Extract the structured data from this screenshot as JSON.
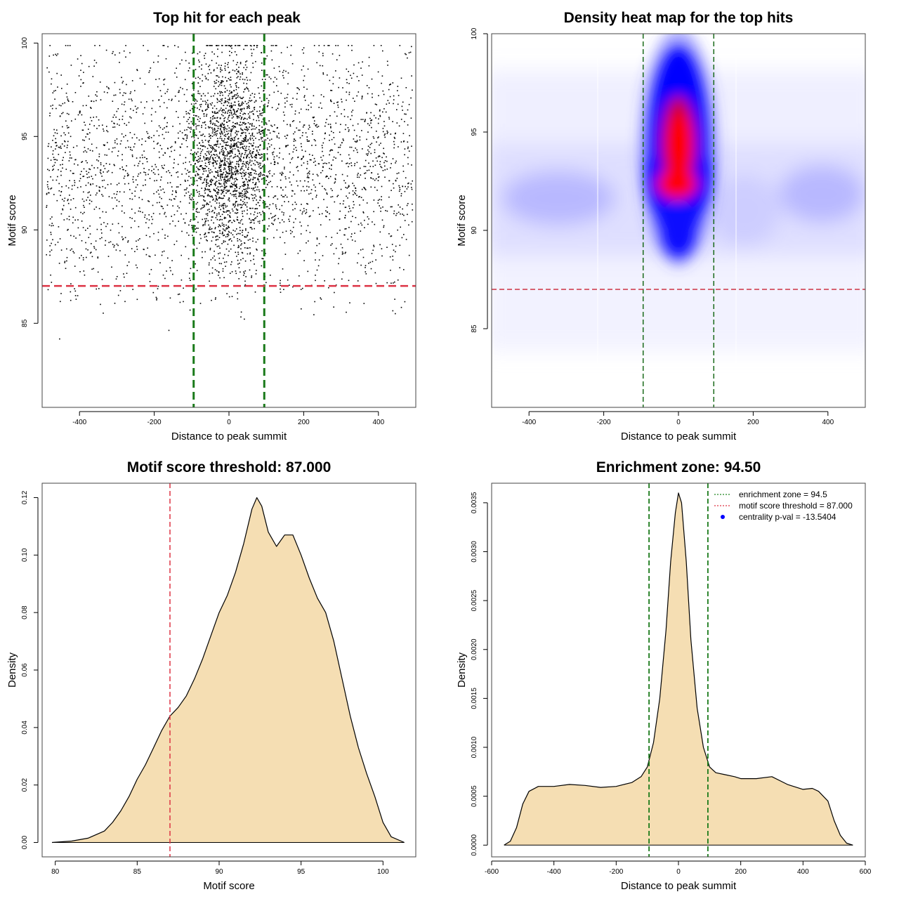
{
  "chart_data": [
    {
      "type": "scatter",
      "title": "Top hit for each peak",
      "xlabel": "Distance to peak summit",
      "ylabel": "Motif score",
      "xlim": [
        -500,
        500
      ],
      "ylim": [
        80.5,
        100.5
      ],
      "x_ticks": [
        -400,
        -200,
        0,
        200,
        400
      ],
      "y_ticks": [
        85,
        90,
        95,
        100
      ],
      "reference_lines": {
        "vertical": [
          -94.5,
          94.5
        ],
        "vertical_color": "#1a7a1a",
        "horizontal": 87.0,
        "horizontal_color": "#dd3344"
      },
      "point_color": "#000000",
      "grid": false,
      "note_points": "thousands of small points; dense central band between -100 and 100 with scores roughly 86-100, uniform background from -500 to 500 with scores roughly 81-100"
    },
    {
      "type": "heatmap",
      "title": "Density heat map for the top hits",
      "xlabel": "Distance to peak summit",
      "ylabel": "Motif score",
      "xlim": [
        -500,
        500
      ],
      "ylim": [
        81,
        100
      ],
      "x_ticks": [
        -400,
        -200,
        0,
        200,
        400
      ],
      "y_ticks": [
        85,
        90,
        95,
        100
      ],
      "colors": {
        "low": "#ffffff",
        "mid": "#0000ff",
        "high": "#ff0000"
      },
      "hotspot": {
        "x": 5,
        "y": 93.5
      },
      "reference_lines": {
        "vertical": [
          -94.5,
          94.5
        ],
        "vertical_color": "#1a6a1a",
        "horizontal": 87.0,
        "horizontal_color": "#cc3344"
      },
      "grid": false
    },
    {
      "type": "area",
      "title": "Motif score threshold: 87.000",
      "xlabel": "Motif score",
      "ylabel": "Density",
      "xlim": [
        79.2,
        102
      ],
      "ylim": [
        -0.005,
        0.125
      ],
      "x_ticks": [
        80,
        85,
        90,
        95,
        100
      ],
      "y_ticks": [
        "0.00",
        "0.02",
        "0.04",
        "0.06",
        "0.08",
        "0.10",
        "0.12"
      ],
      "x": [
        79.8,
        81,
        82,
        83,
        83.5,
        84,
        84.5,
        85,
        85.5,
        86,
        86.5,
        87,
        87.5,
        88,
        88.5,
        89,
        89.5,
        90,
        90.5,
        91,
        91.5,
        92,
        92.3,
        92.6,
        93,
        93.5,
        94,
        94.5,
        95,
        95.5,
        96,
        96.5,
        97,
        97.5,
        98,
        98.5,
        99,
        99.5,
        100,
        100.5,
        101.3
      ],
      "y": [
        0,
        0.0005,
        0.0015,
        0.004,
        0.007,
        0.011,
        0.016,
        0.022,
        0.027,
        0.033,
        0.039,
        0.044,
        0.047,
        0.051,
        0.057,
        0.064,
        0.072,
        0.08,
        0.086,
        0.094,
        0.104,
        0.116,
        0.12,
        0.117,
        0.108,
        0.103,
        0.107,
        0.107,
        0.1,
        0.092,
        0.085,
        0.08,
        0.07,
        0.057,
        0.044,
        0.033,
        0.024,
        0.016,
        0.007,
        0.002,
        0
      ],
      "fill": "#f5deb3",
      "line_color": "#000000",
      "threshold": 87.0,
      "threshold_color": "#dd3344",
      "grid": false
    },
    {
      "type": "area",
      "title": "Enrichment zone: 94.50",
      "xlabel": "Distance to peak summit",
      "ylabel": "Density",
      "xlim": [
        -600,
        600
      ],
      "ylim": [
        -0.00012,
        0.0037
      ],
      "x_ticks": [
        -600,
        -400,
        -200,
        0,
        200,
        400,
        600
      ],
      "y_ticks": [
        "0.0000",
        "0.0005",
        "0.0010",
        "0.0015",
        "0.0020",
        "0.0025",
        "0.0030",
        "0.0035"
      ],
      "x": [
        -560,
        -540,
        -520,
        -500,
        -480,
        -450,
        -400,
        -350,
        -300,
        -250,
        -200,
        -150,
        -120,
        -100,
        -80,
        -60,
        -40,
        -25,
        -10,
        0,
        10,
        25,
        40,
        60,
        80,
        100,
        120,
        150,
        180,
        200,
        250,
        300,
        350,
        400,
        430,
        450,
        480,
        500,
        520,
        540,
        560
      ],
      "y": [
        0,
        4e-05,
        0.00018,
        0.00042,
        0.00055,
        0.0006,
        0.0006,
        0.00062,
        0.00061,
        0.00059,
        0.0006,
        0.00064,
        0.0007,
        0.0008,
        0.00105,
        0.0015,
        0.0022,
        0.0029,
        0.0034,
        0.0036,
        0.0035,
        0.0029,
        0.0021,
        0.0014,
        0.001,
        0.0008,
        0.00074,
        0.00072,
        0.0007,
        0.00068,
        0.00068,
        0.0007,
        0.00062,
        0.00057,
        0.00058,
        0.00055,
        0.00045,
        0.00025,
        0.0001,
        2e-05,
        0
      ],
      "fill": "#f5deb3",
      "line_color": "#000000",
      "reference_lines": {
        "vertical": [
          -94.5,
          94.5
        ],
        "color": "#1a7a1a"
      },
      "legend": {
        "position": "top-right",
        "entries": [
          {
            "label": "enrichment zone = 94.5",
            "color": "#228822",
            "symbol": "dotted-line"
          },
          {
            "label": "motif score threshold = 87.000",
            "color": "#dd3344",
            "symbol": "dotted-line"
          },
          {
            "label": "centrality p-val = -13.5404",
            "color": "#0000ff",
            "symbol": "dot"
          }
        ]
      },
      "grid": false
    }
  ]
}
